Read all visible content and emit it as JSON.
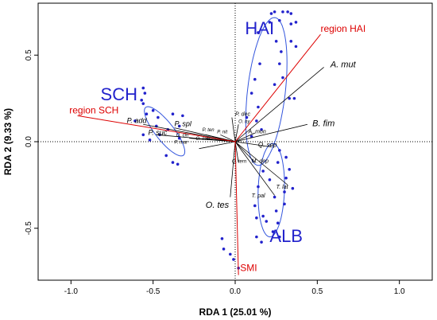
{
  "chart_data": {
    "type": "scatter",
    "xlabel": "RDA 1 (25.01 %)",
    "ylabel": "RDA 2 (9.33 %)",
    "xlim": [
      -1.2,
      1.2
    ],
    "ylim": [
      -0.8,
      0.8
    ],
    "x_ticks": [
      "-1.0",
      "-0.5",
      "0.0",
      "0.5",
      "1.0"
    ],
    "x_tick_values": [
      -1.0,
      -0.5,
      0.0,
      0.5,
      1.0
    ],
    "y_ticks": [
      "-0.5",
      "0.0",
      "0.5"
    ],
    "y_tick_values": [
      -0.5,
      0.0,
      0.5
    ],
    "colors": {
      "points": "#2222cc",
      "ellipse": "#3355dd",
      "region": "#dd0000",
      "species": "#000000",
      "reference": "#666666"
    },
    "groups": [
      {
        "name": "HAI",
        "label_at": [
          0.06,
          0.62
        ],
        "ellipse": {
          "cx": 0.19,
          "cy": 0.29,
          "rx": 0.43,
          "ry": 0.115,
          "angle_deg": 83
        },
        "points": [
          [
            0.22,
            0.74
          ],
          [
            0.24,
            0.75
          ],
          [
            0.29,
            0.75
          ],
          [
            0.32,
            0.75
          ],
          [
            0.34,
            0.74
          ],
          [
            0.21,
            0.69
          ],
          [
            0.27,
            0.7
          ],
          [
            0.34,
            0.68
          ],
          [
            0.37,
            0.69
          ],
          [
            0.14,
            0.63
          ],
          [
            0.25,
            0.58
          ],
          [
            0.28,
            0.52
          ],
          [
            0.34,
            0.58
          ],
          [
            0.37,
            0.55
          ],
          [
            0.15,
            0.45
          ],
          [
            0.27,
            0.45
          ],
          [
            0.12,
            0.36
          ],
          [
            0.29,
            0.37
          ],
          [
            0.1,
            0.28
          ],
          [
            0.24,
            0.33
          ],
          [
            0.14,
            0.2
          ],
          [
            0.33,
            0.25
          ],
          [
            0.36,
            0.25
          ],
          [
            0.07,
            0.14
          ],
          [
            0.13,
            0.12
          ],
          [
            0.1,
            0.03
          ],
          [
            0.16,
            0.07
          ]
        ]
      },
      {
        "name": "SCH",
        "label_at": [
          -0.82,
          0.24
        ],
        "ellipse": {
          "cx": -0.43,
          "cy": 0.06,
          "rx": 0.18,
          "ry": 0.055,
          "angle_deg": -50
        },
        "points": [
          [
            -0.56,
            0.31
          ],
          [
            -0.55,
            0.28
          ],
          [
            -0.57,
            0.24
          ],
          [
            -0.56,
            0.22
          ],
          [
            -0.54,
            0.16
          ],
          [
            -0.5,
            0.18
          ],
          [
            -0.47,
            0.14
          ],
          [
            -0.61,
            0.12
          ],
          [
            -0.48,
            0.09
          ],
          [
            -0.56,
            0.04
          ],
          [
            -0.46,
            0.04
          ],
          [
            -0.52,
            0.01
          ],
          [
            -0.41,
            0.07
          ],
          [
            -0.38,
            0.16
          ],
          [
            -0.34,
            0.09
          ],
          [
            -0.32,
            0.15
          ],
          [
            -0.34,
            0.02
          ],
          [
            -0.42,
            -0.08
          ],
          [
            -0.38,
            -0.12
          ],
          [
            -0.35,
            -0.13
          ]
        ]
      },
      {
        "name": "ALB",
        "label_at": [
          0.21,
          -0.58
        ],
        "ellipse": {
          "cx": 0.22,
          "cy": -0.28,
          "rx": 0.27,
          "ry": 0.08,
          "angle_deg": 88
        },
        "points": [
          [
            0.27,
            -0.05
          ],
          [
            0.31,
            -0.09
          ],
          [
            0.26,
            -0.12
          ],
          [
            0.33,
            -0.16
          ],
          [
            0.17,
            -0.17
          ],
          [
            0.21,
            -0.22
          ],
          [
            0.31,
            -0.21
          ],
          [
            0.35,
            -0.27
          ],
          [
            0.3,
            -0.29
          ],
          [
            0.14,
            -0.26
          ],
          [
            0.24,
            -0.32
          ],
          [
            0.3,
            -0.36
          ],
          [
            0.12,
            -0.37
          ],
          [
            0.25,
            -0.4
          ],
          [
            0.17,
            -0.43
          ],
          [
            0.13,
            -0.44
          ],
          [
            0.19,
            -0.46
          ],
          [
            0.26,
            -0.47
          ],
          [
            0.23,
            -0.52
          ],
          [
            0.13,
            -0.55
          ],
          [
            0.27,
            -0.55
          ],
          [
            0.16,
            -0.58
          ]
        ]
      }
    ],
    "extra_points": [
      [
        -0.08,
        -0.56
      ],
      [
        -0.07,
        -0.62
      ],
      [
        -0.03,
        -0.65
      ],
      [
        -0.01,
        -0.68
      ],
      [
        0.02,
        -0.73
      ]
    ],
    "regions": [
      {
        "label": "region HAI",
        "x": 0.52,
        "y": 0.62,
        "label_at": [
          0.52,
          0.62
        ]
      },
      {
        "label": "region SCH",
        "x": -0.96,
        "y": 0.15,
        "label_at": [
          -1.01,
          0.15
        ]
      },
      {
        "label": "SMI",
        "x": 0.02,
        "y": -0.77,
        "label_at": [
          0.03,
          -0.76
        ]
      }
    ],
    "species": [
      {
        "label": "A. mut",
        "x": 0.54,
        "y": 0.43,
        "label_at": [
          0.58,
          0.42
        ],
        "size": 11
      },
      {
        "label": "B. fim",
        "x": 0.44,
        "y": 0.1,
        "label_at": [
          0.47,
          0.08
        ],
        "size": 11
      },
      {
        "label": "O. tes",
        "x": -0.03,
        "y": -0.32,
        "label_at": [
          -0.18,
          -0.39
        ],
        "size": 11
      },
      {
        "label": "P. add",
        "x": -0.56,
        "y": 0.1,
        "label_at": [
          -0.66,
          0.1
        ],
        "size": 9
      },
      {
        "label": "P. spl",
        "x": -0.37,
        "y": 0.08,
        "label_at": [
          -0.37,
          0.08
        ],
        "size": 9
      },
      {
        "label": "P. suc",
        "x": -0.48,
        "y": 0.04,
        "label_at": [
          -0.53,
          0.03
        ],
        "size": 9
      },
      {
        "label": "P. ten",
        "x": -0.18,
        "y": 0.04,
        "label_at": [
          -0.2,
          0.05
        ],
        "size": 6
      },
      {
        "label": "P. nit",
        "x": -0.09,
        "y": 0.04,
        "label_at": [
          -0.11,
          0.04
        ],
        "size": 6
      },
      {
        "label": "O. cin",
        "x": -0.28,
        "y": 0.02,
        "label_at": [
          -0.36,
          0.02
        ],
        "size": 6
      },
      {
        "label": "O. mar",
        "x": -0.18,
        "y": 0.02,
        "label_at": [
          -0.24,
          0.0
        ],
        "size": 6
      },
      {
        "label": "P. mar",
        "x": -0.22,
        "y": -0.04,
        "label_at": [
          -0.37,
          -0.02
        ],
        "size": 6
      },
      {
        "label": "P. dec",
        "x": -0.02,
        "y": 0.14,
        "label_at": [
          0.0,
          0.14
        ],
        "size": 7
      },
      {
        "label": "O. ny",
        "x": 0.02,
        "y": 0.1,
        "label_at": [
          0.02,
          0.1
        ],
        "size": 6
      },
      {
        "label": "A. mon",
        "x": 0.12,
        "y": 0.05,
        "label_at": [
          0.08,
          0.04
        ],
        "size": 7
      },
      {
        "label": "Q. sep",
        "x": 0.22,
        "y": -0.03,
        "label_at": [
          0.14,
          -0.04
        ],
        "size": 8
      },
      {
        "label": "Q. tern",
        "x": 0.02,
        "y": -0.12,
        "label_at": [
          -0.02,
          -0.13
        ],
        "size": 6
      },
      {
        "label": "M. dep",
        "x": 0.12,
        "y": -0.12,
        "label_at": [
          0.1,
          -0.13
        ],
        "size": 7
      },
      {
        "label": "T. lat",
        "x": 0.32,
        "y": -0.25,
        "label_at": [
          0.25,
          -0.28
        ],
        "size": 7
      },
      {
        "label": "T. pal",
        "x": 0.24,
        "y": -0.31,
        "label_at": [
          0.1,
          -0.33
        ],
        "size": 7
      }
    ],
    "grid": false,
    "legend": "none"
  }
}
